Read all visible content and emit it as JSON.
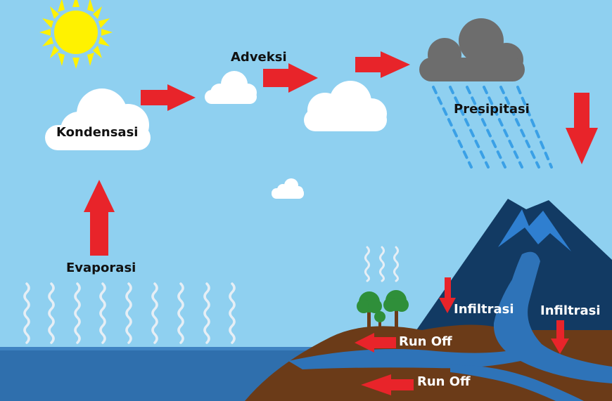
{
  "labels": {
    "kondensasi": "Kondensasi",
    "adveksi": "Adveksi",
    "presipitasi": "Presipitasi",
    "evaporasi": "Evaporasi",
    "infiltrasi_left": "Infiltrasi",
    "infiltrasi_right": "Infiltrasi",
    "runoff_upper": "Run Off",
    "runoff_lower": "Run Off"
  },
  "colors": {
    "sky": "#8fd0f0",
    "sea": "#2f6fad",
    "soil": "#6b3b18",
    "mountain": "#123a63",
    "river": "#2e73b8",
    "arrow": "#e8242a",
    "sun": "#fff200",
    "cloud": "#ffffff",
    "rain_cloud": "#6d6d6d",
    "rain": "#3aa0e6",
    "tree": "#2f8f3a"
  }
}
